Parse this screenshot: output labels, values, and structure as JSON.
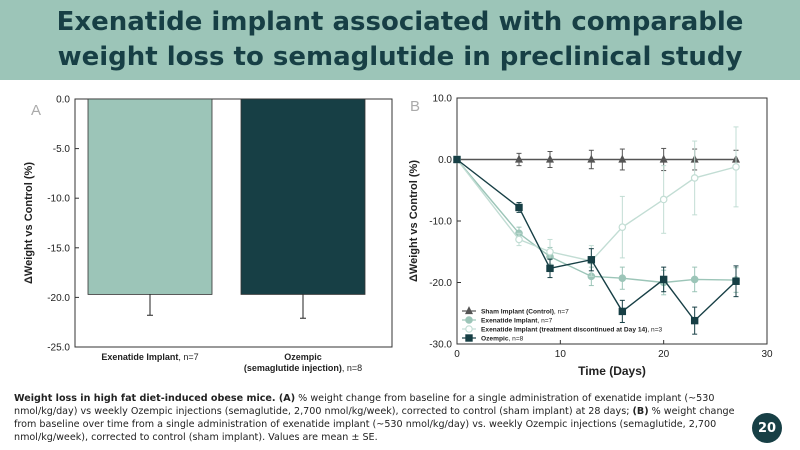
{
  "header": {
    "title_line1": "Exenatide implant associated with comparable",
    "title_line2": "weight loss to semaglutide in preclinical study"
  },
  "colors": {
    "banner": "#9cc5b8",
    "title": "#173f45",
    "exenatide": "#9cc5b8",
    "ozempic": "#173f45",
    "sham": "#555555",
    "discontinued": "#c2ddd4"
  },
  "chart_data": [
    {
      "type": "bar",
      "panel_label": "A",
      "ylabel": "ΔWeight vs Control (%)",
      "ylim": [
        -25,
        0
      ],
      "yticks": [
        "0.0",
        "-5.0",
        "-10.0",
        "-15.0",
        "-20.0",
        "-25.0"
      ],
      "categories": [
        {
          "name": "Exenatide Implant",
          "suffix": ", n=7"
        },
        {
          "name": "Ozempic",
          "name_line2": "(semaglutide injection)",
          "suffix": ", n=8"
        }
      ],
      "values": [
        -19.7,
        -19.7
      ],
      "errors": [
        2.1,
        2.4
      ]
    },
    {
      "type": "line",
      "panel_label": "B",
      "xlabel": "Time (Days)",
      "ylabel": "ΔWeight vs Control (%)",
      "xlim": [
        0,
        30
      ],
      "ylim": [
        -30,
        10
      ],
      "xticks": [
        "0",
        "10",
        "20",
        "30"
      ],
      "yticks": [
        "10.0",
        "0.0",
        "-10.0",
        "-20.0",
        "-30.0"
      ],
      "legend_position": "bottom-left",
      "series": [
        {
          "name": "Sham Implant (Control)",
          "suffix": ", n=7",
          "marker": "triangle",
          "x": [
            0,
            6,
            9,
            13,
            16,
            20,
            23,
            27
          ],
          "y": [
            0,
            0,
            0,
            0,
            0,
            0,
            0,
            0
          ],
          "err": [
            0,
            1.0,
            1.3,
            1.5,
            1.7,
            1.8,
            1.7,
            1.5
          ]
        },
        {
          "name": "Exenatide Implant",
          "suffix": ", n=7",
          "marker": "circle",
          "x": [
            0,
            6,
            9,
            13,
            16,
            20,
            23,
            27
          ],
          "y": [
            0,
            -12,
            -15.8,
            -19,
            -19.3,
            -20,
            -19.5,
            -19.6
          ],
          "err": [
            0,
            1.0,
            1.5,
            1.5,
            1.8,
            2.0,
            2.0,
            2.0
          ]
        },
        {
          "name": "Exenatide Implant (treatment discontinued at Day 14)",
          "suffix": ", n=3",
          "marker": "circle-open",
          "x": [
            0,
            6,
            9,
            13,
            16,
            20,
            23,
            27
          ],
          "y": [
            0,
            -13,
            -15,
            -16.5,
            -11,
            -6.5,
            -3,
            -1.2
          ],
          "err": [
            0,
            1.0,
            2.0,
            2.5,
            5.0,
            5.5,
            6.0,
            6.5
          ]
        },
        {
          "name": "Ozempic",
          "suffix": ", n=8",
          "marker": "square",
          "x": [
            0,
            6,
            9,
            13,
            16,
            20,
            23,
            27
          ],
          "y": [
            0,
            -7.8,
            -17.7,
            -16.3,
            -24.7,
            -19.5,
            -26.2,
            -19.8
          ],
          "err": [
            0,
            0.8,
            1.5,
            1.8,
            1.8,
            2.0,
            2.2,
            2.5
          ]
        }
      ]
    }
  ],
  "caption": {
    "bold_lead": "Weight loss in high fat diet-induced obese mice. (A)",
    "part1": " % weight change from baseline for a single administration of exenatide implant (~530 nmol/kg/day) vs weekly Ozempic injections (semaglutide, 2,700 nmol/kg/week), corrected to control (sham implant) at 28 days; ",
    "bold_b": "(B)",
    "part2": " % weight change from baseline over time from a single administration of exenatide implant (~530 nmol/kg/day) vs. weekly Ozempic injections (semaglutide, 2,700 nmol/kg/week), corrected to control (sham implant). Values are mean ± SE."
  },
  "page_number": "20"
}
